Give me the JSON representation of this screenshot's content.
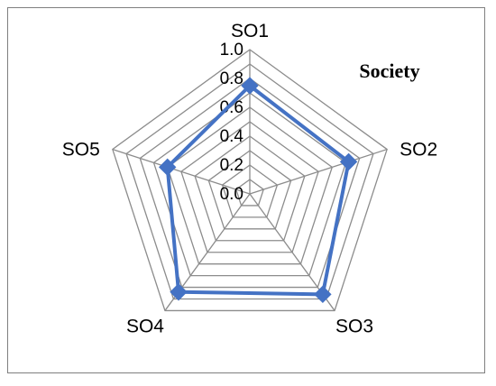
{
  "chart_data": {
    "type": "radar",
    "title": "Society",
    "categories": [
      "SO1",
      "SO2",
      "SO3",
      "SO4",
      "SO5"
    ],
    "series": [
      {
        "values": [
          0.75,
          0.72,
          0.86,
          0.84,
          0.6
        ]
      }
    ],
    "rlim": [
      0.0,
      1.0
    ],
    "ticks": [
      "0.0",
      "0.2",
      "0.4",
      "0.6",
      "0.8",
      "1.0"
    ],
    "grid": true,
    "series_color": "#4472c4",
    "grid_color": "#8c8c8c"
  }
}
